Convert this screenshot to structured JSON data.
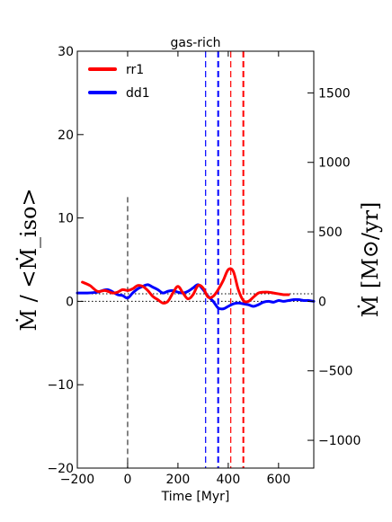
{
  "chart_data": {
    "type": "line",
    "title": "gas-rich",
    "xlabel": "Time [Myr]",
    "ylabel_left": "Ṁ / <Ṁ_iso>",
    "ylabel_right": "Ṁ [M⊙/yr]",
    "xlim": [
      -200,
      740
    ],
    "ylim_left": [
      -20,
      30
    ],
    "ylim_right": [
      -1200,
      1800
    ],
    "x_ticks": [
      -200,
      0,
      200,
      400,
      600
    ],
    "y_ticks_left": [
      -20,
      -10,
      0,
      10,
      20,
      30
    ],
    "y_tick_labels_left": [
      "−20",
      "−10",
      "0",
      "10",
      "20",
      "30"
    ],
    "y_ticks_right": [
      -1000,
      -500,
      0,
      500,
      1000,
      1500
    ],
    "y_tick_labels_right": [
      "−1000",
      "−500",
      "0",
      "500",
      "1000",
      "1500"
    ],
    "x_tick_labels": [
      "−200",
      "0",
      "200",
      "400",
      "600"
    ],
    "legend": {
      "location": "upper-left"
    },
    "series": [
      {
        "name": "rr1",
        "color": "#ff0000",
        "x": [
          -180,
          -150,
          -120,
          -90,
          -60,
          -40,
          -20,
          0,
          20,
          40,
          60,
          80,
          100,
          120,
          140,
          160,
          180,
          200,
          220,
          240,
          260,
          280,
          300,
          320,
          340,
          360,
          380,
          400,
          420,
          440,
          460,
          480,
          500,
          520,
          540,
          560,
          580,
          600,
          620,
          640
        ],
        "y": [
          2.3,
          1.9,
          1.2,
          1.3,
          1.0,
          1.1,
          1.4,
          1.3,
          1.5,
          1.9,
          1.8,
          1.3,
          0.6,
          0.2,
          -0.2,
          0.0,
          1.0,
          1.8,
          1.0,
          0.3,
          0.8,
          1.9,
          1.6,
          0.5,
          0.6,
          1.4,
          2.5,
          3.8,
          3.6,
          1.4,
          0.1,
          0.0,
          0.5,
          1.0,
          1.1,
          1.1,
          1.0,
          0.9,
          0.8,
          0.8
        ]
      },
      {
        "name": "dd1",
        "color": "#0000ff",
        "x": [
          -200,
          -160,
          -120,
          -80,
          -40,
          -20,
          0,
          20,
          40,
          60,
          80,
          100,
          120,
          140,
          160,
          180,
          200,
          220,
          240,
          260,
          280,
          300,
          320,
          340,
          360,
          380,
          400,
          420,
          440,
          460,
          480,
          500,
          520,
          540,
          560,
          580,
          600,
          620,
          640,
          660,
          680,
          700,
          720,
          740
        ],
        "y": [
          1.0,
          1.0,
          1.1,
          1.4,
          0.8,
          0.7,
          0.4,
          1.0,
          1.5,
          1.8,
          2.0,
          1.7,
          1.4,
          1.0,
          1.2,
          1.3,
          1.1,
          1.0,
          1.2,
          1.6,
          2.0,
          1.4,
          0.6,
          0.0,
          -0.8,
          -0.9,
          -0.6,
          -0.3,
          -0.2,
          -0.3,
          -0.4,
          -0.6,
          -0.4,
          -0.1,
          0.0,
          -0.1,
          0.1,
          0.0,
          0.1,
          0.2,
          0.2,
          0.1,
          0.1,
          0.0
        ]
      }
    ],
    "reference_lines": {
      "horizontal_dotted_y": [
        0.0,
        0.9
      ],
      "vertical_black_dashed_x": 0,
      "vertical_blue_x": [
        310,
        360
      ],
      "vertical_red_x": [
        410,
        460
      ]
    }
  }
}
